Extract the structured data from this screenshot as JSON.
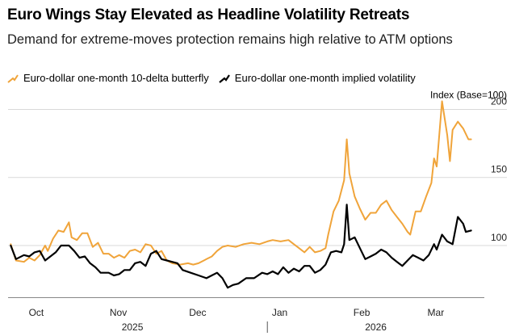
{
  "title": "Euro Wings Stay Elevated as Headline Volatility Retreats",
  "subtitle": "Demand for extreme-moves protection remains high relative to ATM options",
  "colors": {
    "butterfly": "#f0a43a",
    "implied_vol": "#000000",
    "grid": "#d9d9d9"
  },
  "chart_data": {
    "type": "line",
    "title": "Euro Wings Stay Elevated as Headline Volatility Retreats",
    "subtitle": "Demand for extreme-moves protection remains high relative to ATM options",
    "y_unit_label": "Index (Base=100)",
    "ylim": [
      62,
      208
    ],
    "y_ticks": [
      100,
      150,
      200
    ],
    "y_axis_side": "right",
    "grid": true,
    "legend_position": "top",
    "x_range": [
      "2025-09-24",
      "2026-03-23"
    ],
    "month_ticks": [
      {
        "label": "Oct",
        "date": "2025-10-01"
      },
      {
        "label": "Nov",
        "date": "2025-11-01"
      },
      {
        "label": "Dec",
        "date": "2025-12-01"
      },
      {
        "label": "Jan",
        "date": "2026-01-01"
      },
      {
        "label": "Feb",
        "date": "2026-02-01"
      },
      {
        "label": "Mar",
        "date": "2026-03-01"
      }
    ],
    "year_labels": [
      {
        "label": "2025",
        "center_date": "2025-11-10"
      },
      {
        "label": "2026",
        "center_date": "2026-02-10"
      }
    ],
    "year_divider_date": "2025-12-31",
    "series": [
      {
        "name": "Euro-dollar one-month 10-delta butterfly",
        "color": "#f0a43a",
        "points": [
          [
            "2025-09-25",
            101
          ],
          [
            "2025-09-27",
            89
          ],
          [
            "2025-09-30",
            88
          ],
          [
            "2025-10-02",
            91
          ],
          [
            "2025-10-04",
            89
          ],
          [
            "2025-10-06",
            93
          ],
          [
            "2025-10-08",
            100
          ],
          [
            "2025-10-09",
            96
          ],
          [
            "2025-10-11",
            105
          ],
          [
            "2025-10-13",
            111
          ],
          [
            "2025-10-15",
            110
          ],
          [
            "2025-10-17",
            117
          ],
          [
            "2025-10-18",
            106
          ],
          [
            "2025-10-20",
            104
          ],
          [
            "2025-10-22",
            109
          ],
          [
            "2025-10-24",
            109
          ],
          [
            "2025-10-26",
            99
          ],
          [
            "2025-10-28",
            102
          ],
          [
            "2025-10-30",
            94
          ],
          [
            "2025-11-01",
            94
          ],
          [
            "2025-11-03",
            91
          ],
          [
            "2025-11-05",
            93
          ],
          [
            "2025-11-07",
            91
          ],
          [
            "2025-11-09",
            96
          ],
          [
            "2025-11-11",
            97
          ],
          [
            "2025-11-13",
            95
          ],
          [
            "2025-11-15",
            101
          ],
          [
            "2025-11-17",
            100
          ],
          [
            "2025-11-19",
            94
          ],
          [
            "2025-11-21",
            96
          ],
          [
            "2025-11-23",
            89
          ],
          [
            "2025-11-25",
            87
          ],
          [
            "2025-11-28",
            86
          ],
          [
            "2025-12-01",
            87
          ],
          [
            "2025-12-03",
            86
          ],
          [
            "2025-12-05",
            87
          ],
          [
            "2025-12-08",
            90
          ],
          [
            "2025-12-10",
            92
          ],
          [
            "2025-12-12",
            96
          ],
          [
            "2025-12-14",
            99
          ],
          [
            "2025-12-16",
            100
          ],
          [
            "2025-12-19",
            99
          ],
          [
            "2025-12-22",
            101
          ],
          [
            "2025-12-25",
            102
          ],
          [
            "2025-12-28",
            101
          ],
          [
            "2025-12-31",
            103
          ],
          [
            "2026-01-02",
            104
          ],
          [
            "2026-01-05",
            103
          ],
          [
            "2026-01-08",
            104
          ],
          [
            "2026-01-10",
            101
          ],
          [
            "2026-01-12",
            98
          ],
          [
            "2026-01-14",
            95
          ],
          [
            "2026-01-16",
            99
          ],
          [
            "2026-01-18",
            95
          ],
          [
            "2026-01-20",
            96
          ],
          [
            "2026-01-22",
            98
          ],
          [
            "2026-01-23",
            108
          ],
          [
            "2026-01-25",
            125
          ],
          [
            "2026-01-27",
            133
          ],
          [
            "2026-01-29",
            148
          ],
          [
            "2026-01-30",
            178
          ],
          [
            "2026-01-31",
            153
          ],
          [
            "2026-02-02",
            136
          ],
          [
            "2026-02-04",
            127
          ],
          [
            "2026-02-06",
            119
          ],
          [
            "2026-02-08",
            124
          ],
          [
            "2026-02-10",
            124
          ],
          [
            "2026-02-12",
            130
          ],
          [
            "2026-02-14",
            133
          ],
          [
            "2026-02-16",
            126
          ],
          [
            "2026-02-18",
            121
          ],
          [
            "2026-02-20",
            116
          ],
          [
            "2026-02-22",
            110
          ],
          [
            "2026-02-23",
            108
          ],
          [
            "2026-02-25",
            125
          ],
          [
            "2026-02-27",
            125
          ],
          [
            "2026-03-01",
            136
          ],
          [
            "2026-03-03",
            146
          ],
          [
            "2026-03-04",
            164
          ],
          [
            "2026-03-05",
            158
          ],
          [
            "2026-03-07",
            206
          ],
          [
            "2026-03-09",
            181
          ],
          [
            "2026-03-10",
            162
          ],
          [
            "2026-03-11",
            185
          ],
          [
            "2026-03-13",
            191
          ],
          [
            "2026-03-15",
            186
          ],
          [
            "2026-03-17",
            178
          ],
          [
            "2026-03-18",
            178
          ]
        ]
      },
      {
        "name": "Euro-dollar one-month implied volatility",
        "color": "#000000",
        "points": [
          [
            "2025-09-25",
            100
          ],
          [
            "2025-09-27",
            90
          ],
          [
            "2025-09-30",
            93
          ],
          [
            "2025-10-02",
            92
          ],
          [
            "2025-10-04",
            95
          ],
          [
            "2025-10-06",
            96
          ],
          [
            "2025-10-08",
            89
          ],
          [
            "2025-10-10",
            92
          ],
          [
            "2025-10-12",
            95
          ],
          [
            "2025-10-14",
            100
          ],
          [
            "2025-10-17",
            100
          ],
          [
            "2025-10-19",
            96
          ],
          [
            "2025-10-21",
            91
          ],
          [
            "2025-10-23",
            92
          ],
          [
            "2025-10-25",
            87
          ],
          [
            "2025-10-27",
            84
          ],
          [
            "2025-10-29",
            80
          ],
          [
            "2025-11-01",
            80
          ],
          [
            "2025-11-03",
            78
          ],
          [
            "2025-11-05",
            79
          ],
          [
            "2025-11-07",
            82
          ],
          [
            "2025-11-09",
            82
          ],
          [
            "2025-11-11",
            87
          ],
          [
            "2025-11-13",
            88
          ],
          [
            "2025-11-15",
            85
          ],
          [
            "2025-11-17",
            94
          ],
          [
            "2025-11-19",
            96
          ],
          [
            "2025-11-21",
            90
          ],
          [
            "2025-11-23",
            89
          ],
          [
            "2025-11-25",
            88
          ],
          [
            "2025-11-27",
            87
          ],
          [
            "2025-11-29",
            82
          ],
          [
            "2025-12-02",
            80
          ],
          [
            "2025-12-05",
            78
          ],
          [
            "2025-12-08",
            76
          ],
          [
            "2025-12-10",
            78
          ],
          [
            "2025-12-12",
            80
          ],
          [
            "2025-12-14",
            76
          ],
          [
            "2025-12-16",
            69
          ],
          [
            "2025-12-18",
            71
          ],
          [
            "2025-12-20",
            72
          ],
          [
            "2025-12-23",
            76
          ],
          [
            "2025-12-26",
            76
          ],
          [
            "2025-12-29",
            80
          ],
          [
            "2025-12-31",
            79
          ],
          [
            "2026-01-02",
            81
          ],
          [
            "2026-01-04",
            79
          ],
          [
            "2026-01-06",
            84
          ],
          [
            "2026-01-08",
            80
          ],
          [
            "2026-01-10",
            83
          ],
          [
            "2026-01-12",
            81
          ],
          [
            "2026-01-14",
            85
          ],
          [
            "2026-01-16",
            85
          ],
          [
            "2026-01-18",
            80
          ],
          [
            "2026-01-20",
            82
          ],
          [
            "2026-01-22",
            86
          ],
          [
            "2026-01-24",
            95
          ],
          [
            "2026-01-26",
            96
          ],
          [
            "2026-01-28",
            95
          ],
          [
            "2026-01-29",
            101
          ],
          [
            "2026-01-30",
            130
          ],
          [
            "2026-01-31",
            104
          ],
          [
            "2026-02-02",
            106
          ],
          [
            "2026-02-04",
            98
          ],
          [
            "2026-02-06",
            90
          ],
          [
            "2026-02-08",
            92
          ],
          [
            "2026-02-10",
            94
          ],
          [
            "2026-02-12",
            97
          ],
          [
            "2026-02-14",
            95
          ],
          [
            "2026-02-16",
            91
          ],
          [
            "2026-02-18",
            88
          ],
          [
            "2026-02-20",
            85
          ],
          [
            "2026-02-22",
            89
          ],
          [
            "2026-02-24",
            93
          ],
          [
            "2026-02-26",
            91
          ],
          [
            "2026-02-28",
            89
          ],
          [
            "2026-03-02",
            93
          ],
          [
            "2026-03-04",
            101
          ],
          [
            "2026-03-05",
            97
          ],
          [
            "2026-03-07",
            108
          ],
          [
            "2026-03-09",
            103
          ],
          [
            "2026-03-11",
            101
          ],
          [
            "2026-03-13",
            121
          ],
          [
            "2026-03-15",
            116
          ],
          [
            "2026-03-16",
            110
          ],
          [
            "2026-03-18",
            111
          ]
        ]
      }
    ]
  }
}
